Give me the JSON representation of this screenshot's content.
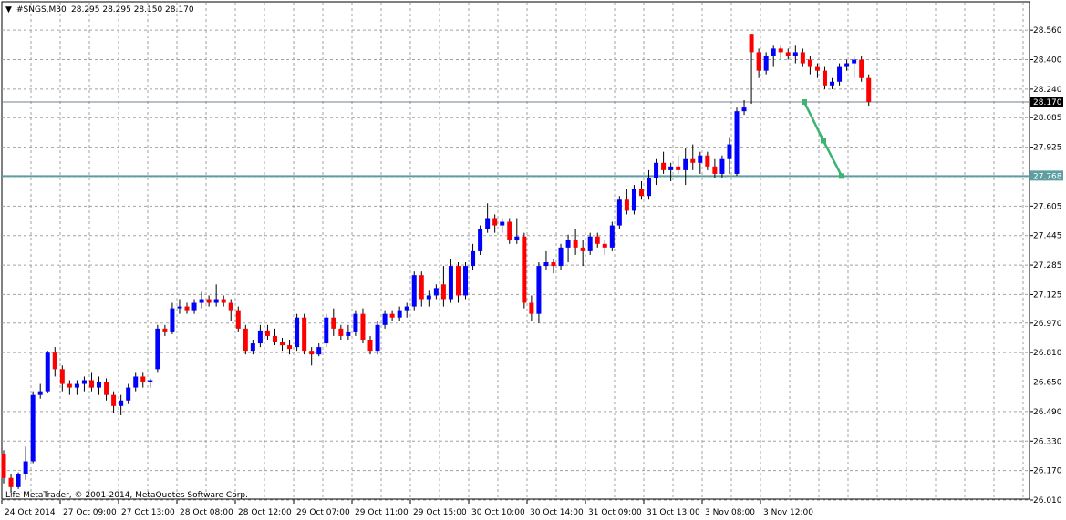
{
  "header": {
    "symbol": "#SNGS,M30",
    "ohlc": "28.295 28.295 28.150 28.170"
  },
  "copyright": "Life MetaTrader, © 2001-2014, MetaQuotes Software Corp.",
  "chart_data": {
    "type": "candlestick",
    "ylim": [
      26.01,
      28.62
    ],
    "y_ticks": [
      "28.560",
      "28.400",
      "28.240",
      "28.085",
      "27.925",
      "27.765",
      "27.605",
      "27.445",
      "27.285",
      "27.125",
      "26.970",
      "26.810",
      "26.650",
      "26.490",
      "26.330",
      "26.170",
      "26.010"
    ],
    "x_ticks": [
      "24 Oct 2014",
      "27 Oct 09:00",
      "27 Oct 13:00",
      "28 Oct 08:00",
      "28 Oct 12:00",
      "29 Oct 07:00",
      "29 Oct 11:00",
      "29 Oct 15:00",
      "30 Oct 10:00",
      "30 Oct 14:00",
      "31 Oct 09:00",
      "31 Oct 13:00",
      "3 Nov 08:00",
      "3 Nov 12:00"
    ],
    "bid_line": {
      "label": "28.170",
      "value": 28.17
    },
    "level_line": {
      "label": "27.768",
      "value": 27.768
    },
    "forecast": [
      28.17,
      27.96,
      27.768
    ],
    "candles": [
      [
        26.26,
        26.28,
        26.1,
        26.13
      ],
      [
        26.13,
        26.15,
        26.05,
        26.08
      ],
      [
        26.08,
        26.16,
        26.07,
        26.15
      ],
      [
        26.15,
        26.3,
        26.12,
        26.22
      ],
      [
        26.22,
        26.6,
        26.21,
        26.58
      ],
      [
        26.58,
        26.64,
        26.56,
        26.6
      ],
      [
        26.6,
        26.82,
        26.59,
        26.81
      ],
      [
        26.81,
        26.84,
        26.68,
        26.72
      ],
      [
        26.72,
        26.74,
        26.6,
        26.64
      ],
      [
        26.64,
        26.66,
        26.58,
        26.62
      ],
      [
        26.62,
        26.66,
        26.58,
        26.64
      ],
      [
        26.64,
        26.68,
        26.6,
        26.66
      ],
      [
        26.66,
        26.7,
        26.6,
        26.62
      ],
      [
        26.62,
        26.68,
        26.58,
        26.65
      ],
      [
        26.65,
        26.67,
        26.55,
        26.58
      ],
      [
        26.58,
        26.6,
        26.48,
        26.52
      ],
      [
        26.52,
        26.58,
        26.47,
        26.55
      ],
      [
        26.55,
        26.64,
        26.53,
        26.62
      ],
      [
        26.62,
        26.7,
        26.6,
        26.68
      ],
      [
        26.68,
        26.7,
        26.62,
        26.65
      ],
      [
        26.65,
        26.67,
        26.62,
        26.66
      ],
      [
        26.72,
        26.96,
        26.7,
        26.94
      ],
      [
        26.94,
        26.96,
        26.9,
        26.92
      ],
      [
        26.92,
        27.08,
        26.91,
        27.05
      ],
      [
        27.05,
        27.1,
        27.02,
        27.06
      ],
      [
        27.06,
        27.08,
        27.02,
        27.04
      ],
      [
        27.04,
        27.1,
        27.02,
        27.08
      ],
      [
        27.08,
        27.14,
        27.05,
        27.1
      ],
      [
        27.1,
        27.12,
        27.06,
        27.08
      ],
      [
        27.08,
        27.18,
        27.06,
        27.1
      ],
      [
        27.1,
        27.12,
        27.06,
        27.08
      ],
      [
        27.08,
        27.1,
        26.98,
        27.04
      ],
      [
        27.04,
        27.06,
        26.92,
        26.94
      ],
      [
        26.94,
        26.96,
        26.8,
        26.82
      ],
      [
        26.82,
        26.88,
        26.8,
        26.86
      ],
      [
        26.86,
        26.96,
        26.84,
        26.93
      ],
      [
        26.93,
        26.96,
        26.88,
        26.9
      ],
      [
        26.9,
        26.94,
        26.85,
        26.87
      ],
      [
        26.87,
        26.89,
        26.82,
        26.85
      ],
      [
        26.85,
        26.88,
        26.8,
        26.83
      ],
      [
        26.84,
        27.02,
        26.82,
        27.0
      ],
      [
        27.0,
        27.02,
        26.8,
        26.82
      ],
      [
        26.82,
        26.84,
        26.74,
        26.8
      ],
      [
        26.8,
        26.86,
        26.79,
        26.84
      ],
      [
        26.86,
        27.02,
        26.84,
        27.0
      ],
      [
        27.0,
        27.05,
        26.9,
        26.94
      ],
      [
        26.94,
        26.96,
        26.88,
        26.9
      ],
      [
        26.9,
        26.96,
        26.88,
        26.92
      ],
      [
        26.92,
        27.04,
        26.9,
        27.02
      ],
      [
        27.02,
        27.05,
        26.86,
        26.88
      ],
      [
        26.88,
        26.9,
        26.8,
        26.82
      ],
      [
        26.82,
        26.98,
        26.8,
        26.96
      ],
      [
        26.96,
        27.04,
        26.94,
        27.02
      ],
      [
        27.02,
        27.04,
        26.98,
        27.0
      ],
      [
        27.0,
        27.06,
        26.98,
        27.04
      ],
      [
        27.04,
        27.08,
        27.0,
        27.06
      ],
      [
        27.06,
        27.25,
        27.04,
        27.23
      ],
      [
        27.23,
        27.25,
        27.06,
        27.1
      ],
      [
        27.1,
        27.15,
        27.06,
        27.12
      ],
      [
        27.12,
        27.18,
        27.1,
        27.16
      ],
      [
        27.18,
        27.28,
        27.06,
        27.1
      ],
      [
        27.1,
        27.32,
        27.08,
        27.28
      ],
      [
        27.28,
        27.3,
        27.08,
        27.12
      ],
      [
        27.12,
        27.3,
        27.1,
        27.28
      ],
      [
        27.28,
        27.4,
        27.26,
        27.36
      ],
      [
        27.36,
        27.5,
        27.34,
        27.48
      ],
      [
        27.48,
        27.62,
        27.46,
        27.54
      ],
      [
        27.54,
        27.56,
        27.46,
        27.5
      ],
      [
        27.5,
        27.54,
        27.46,
        27.52
      ],
      [
        27.52,
        27.54,
        27.4,
        27.42
      ],
      [
        27.42,
        27.54,
        27.4,
        27.44
      ],
      [
        27.44,
        27.46,
        27.05,
        27.08
      ],
      [
        27.08,
        27.12,
        26.98,
        27.02
      ],
      [
        27.02,
        27.3,
        26.97,
        27.28
      ],
      [
        27.28,
        27.36,
        27.26,
        27.3
      ],
      [
        27.3,
        27.32,
        27.24,
        27.28
      ],
      [
        27.28,
        27.4,
        27.26,
        27.38
      ],
      [
        27.38,
        27.45,
        27.3,
        27.42
      ],
      [
        27.42,
        27.48,
        27.34,
        27.38
      ],
      [
        27.38,
        27.42,
        27.28,
        27.36
      ],
      [
        27.36,
        27.46,
        27.34,
        27.44
      ],
      [
        27.44,
        27.46,
        27.38,
        27.4
      ],
      [
        27.4,
        27.42,
        27.34,
        27.38
      ],
      [
        27.38,
        27.52,
        27.36,
        27.5
      ],
      [
        27.5,
        27.66,
        27.48,
        27.64
      ],
      [
        27.64,
        27.7,
        27.56,
        27.58
      ],
      [
        27.58,
        27.72,
        27.56,
        27.7
      ],
      [
        27.7,
        27.74,
        27.64,
        27.66
      ],
      [
        27.66,
        27.8,
        27.64,
        27.76
      ],
      [
        27.76,
        27.86,
        27.72,
        27.84
      ],
      [
        27.84,
        27.9,
        27.78,
        27.8
      ],
      [
        27.8,
        27.84,
        27.74,
        27.82
      ],
      [
        27.82,
        27.88,
        27.78,
        27.8
      ],
      [
        27.8,
        27.92,
        27.72,
        27.86
      ],
      [
        27.86,
        27.94,
        27.8,
        27.84
      ],
      [
        27.84,
        27.9,
        27.78,
        27.88
      ],
      [
        27.88,
        27.9,
        27.8,
        27.82
      ],
      [
        27.82,
        27.86,
        27.76,
        27.78
      ],
      [
        27.78,
        27.88,
        27.76,
        27.86
      ],
      [
        27.86,
        27.98,
        27.78,
        27.94
      ],
      [
        27.78,
        28.14,
        27.77,
        28.12
      ],
      [
        28.12,
        28.18,
        28.1,
        28.14
      ],
      [
        28.54,
        28.54,
        28.16,
        28.44
      ],
      [
        28.44,
        28.46,
        28.3,
        28.34
      ],
      [
        28.34,
        28.44,
        28.32,
        28.42
      ],
      [
        28.42,
        28.48,
        28.36,
        28.46
      ],
      [
        28.46,
        28.48,
        28.4,
        28.44
      ],
      [
        28.44,
        28.46,
        28.4,
        28.42
      ],
      [
        28.42,
        28.48,
        28.38,
        28.44
      ],
      [
        28.44,
        28.46,
        28.36,
        28.38
      ],
      [
        28.4,
        28.42,
        28.32,
        28.36
      ],
      [
        28.36,
        28.38,
        28.3,
        28.34
      ],
      [
        28.34,
        28.36,
        28.24,
        28.26
      ],
      [
        28.26,
        28.3,
        28.24,
        28.28
      ],
      [
        28.28,
        28.38,
        28.26,
        28.36
      ],
      [
        28.36,
        28.4,
        28.34,
        28.38
      ],
      [
        28.38,
        28.42,
        28.3,
        28.4
      ],
      [
        28.4,
        28.42,
        28.28,
        28.3
      ],
      [
        28.3,
        28.32,
        28.15,
        28.17
      ]
    ]
  }
}
